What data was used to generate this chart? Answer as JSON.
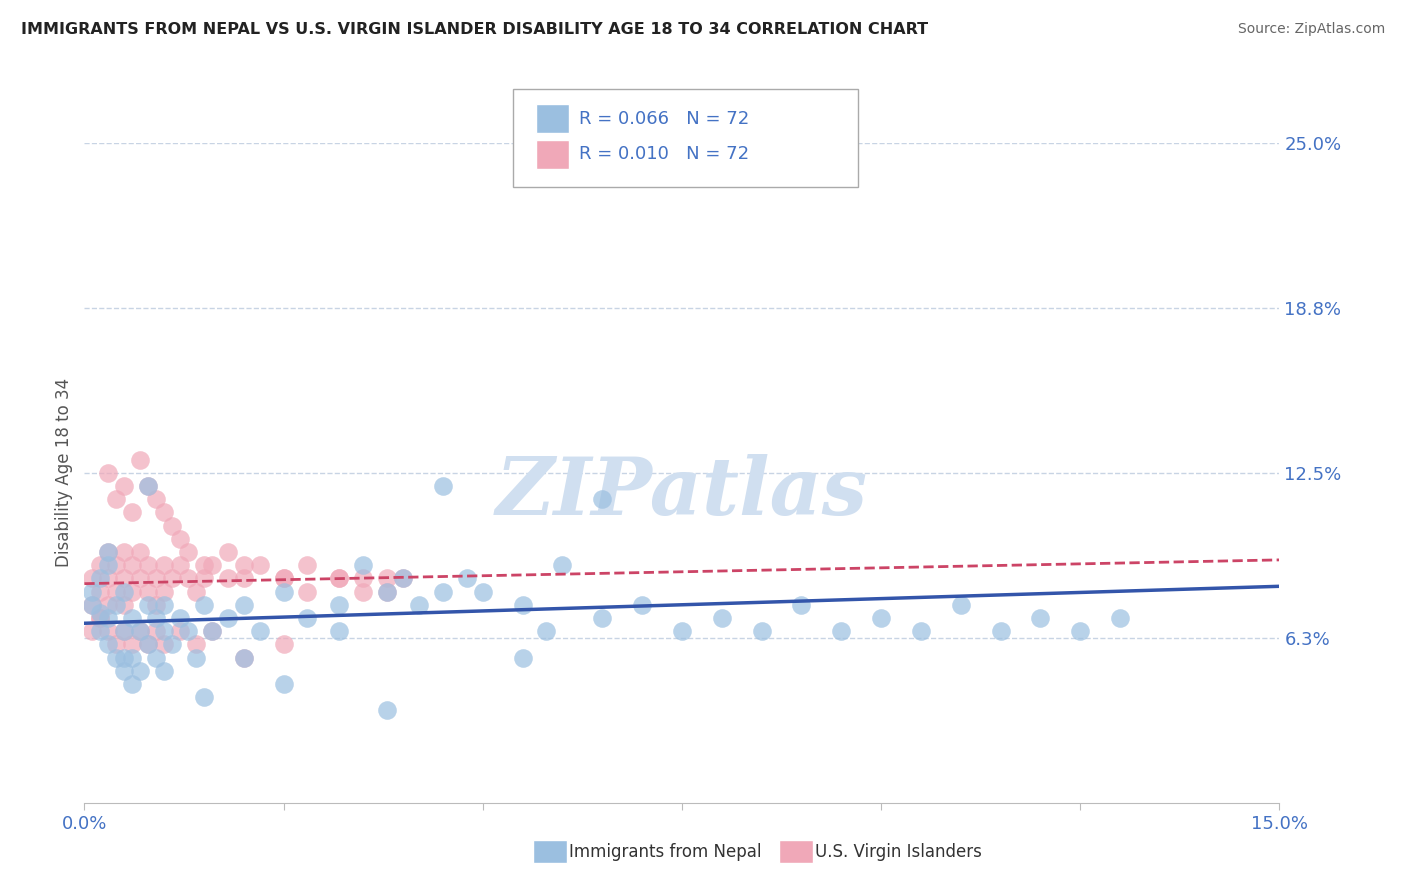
{
  "title": "IMMIGRANTS FROM NEPAL VS U.S. VIRGIN ISLANDER DISABILITY AGE 18 TO 34 CORRELATION CHART",
  "source": "Source: ZipAtlas.com",
  "ylabel": "Disability Age 18 to 34",
  "xlim": [
    0.0,
    0.15
  ],
  "ylim": [
    0.0,
    0.25
  ],
  "blue_color": "#9bbfe0",
  "pink_color": "#f0a8b8",
  "trend_blue": "#3355aa",
  "trend_pink": "#cc4466",
  "watermark": "ZIPatlas",
  "watermark_color": "#d0dff0",
  "axis_label_color": "#4472c4",
  "background_color": "#ffffff",
  "grid_color": "#c8d4e4",
  "legend_label1": "Immigrants from Nepal",
  "legend_label2": "U.S. Virgin Islanders",
  "nepal_x": [
    0.001,
    0.001,
    0.002,
    0.002,
    0.002,
    0.003,
    0.003,
    0.003,
    0.004,
    0.004,
    0.005,
    0.005,
    0.005,
    0.006,
    0.006,
    0.006,
    0.007,
    0.007,
    0.008,
    0.008,
    0.009,
    0.009,
    0.01,
    0.01,
    0.011,
    0.012,
    0.013,
    0.014,
    0.015,
    0.016,
    0.018,
    0.02,
    0.022,
    0.025,
    0.028,
    0.032,
    0.035,
    0.038,
    0.04,
    0.042,
    0.045,
    0.048,
    0.05,
    0.055,
    0.058,
    0.06,
    0.065,
    0.07,
    0.075,
    0.08,
    0.085,
    0.09,
    0.095,
    0.1,
    0.105,
    0.11,
    0.115,
    0.12,
    0.125,
    0.13,
    0.003,
    0.005,
    0.008,
    0.01,
    0.015,
    0.02,
    0.025,
    0.032,
    0.038,
    0.045,
    0.055,
    0.065
  ],
  "nepal_y": [
    0.08,
    0.075,
    0.072,
    0.085,
    0.065,
    0.09,
    0.07,
    0.06,
    0.075,
    0.055,
    0.08,
    0.065,
    0.05,
    0.07,
    0.055,
    0.045,
    0.065,
    0.05,
    0.075,
    0.06,
    0.07,
    0.055,
    0.065,
    0.05,
    0.06,
    0.07,
    0.065,
    0.055,
    0.075,
    0.065,
    0.07,
    0.075,
    0.065,
    0.08,
    0.07,
    0.075,
    0.09,
    0.08,
    0.085,
    0.075,
    0.08,
    0.085,
    0.08,
    0.075,
    0.065,
    0.09,
    0.07,
    0.075,
    0.065,
    0.07,
    0.065,
    0.075,
    0.065,
    0.07,
    0.065,
    0.075,
    0.065,
    0.07,
    0.065,
    0.07,
    0.095,
    0.055,
    0.12,
    0.075,
    0.04,
    0.055,
    0.045,
    0.065,
    0.035,
    0.12,
    0.055,
    0.115
  ],
  "virgin_x": [
    0.001,
    0.001,
    0.001,
    0.002,
    0.002,
    0.002,
    0.003,
    0.003,
    0.003,
    0.004,
    0.004,
    0.005,
    0.005,
    0.005,
    0.006,
    0.006,
    0.007,
    0.007,
    0.008,
    0.008,
    0.009,
    0.009,
    0.01,
    0.01,
    0.011,
    0.012,
    0.013,
    0.014,
    0.015,
    0.016,
    0.018,
    0.02,
    0.022,
    0.025,
    0.028,
    0.032,
    0.035,
    0.038,
    0.04,
    0.003,
    0.004,
    0.005,
    0.006,
    0.007,
    0.008,
    0.009,
    0.01,
    0.011,
    0.012,
    0.013,
    0.015,
    0.018,
    0.02,
    0.025,
    0.028,
    0.032,
    0.035,
    0.038,
    0.002,
    0.003,
    0.004,
    0.005,
    0.006,
    0.007,
    0.008,
    0.009,
    0.01,
    0.012,
    0.014,
    0.016,
    0.02,
    0.025
  ],
  "virgin_y": [
    0.085,
    0.075,
    0.065,
    0.09,
    0.08,
    0.07,
    0.095,
    0.085,
    0.075,
    0.09,
    0.08,
    0.095,
    0.085,
    0.075,
    0.09,
    0.08,
    0.095,
    0.085,
    0.09,
    0.08,
    0.085,
    0.075,
    0.09,
    0.08,
    0.085,
    0.09,
    0.085,
    0.08,
    0.085,
    0.09,
    0.085,
    0.085,
    0.09,
    0.085,
    0.08,
    0.085,
    0.08,
    0.085,
    0.085,
    0.125,
    0.115,
    0.12,
    0.11,
    0.13,
    0.12,
    0.115,
    0.11,
    0.105,
    0.1,
    0.095,
    0.09,
    0.095,
    0.09,
    0.085,
    0.09,
    0.085,
    0.085,
    0.08,
    0.07,
    0.065,
    0.06,
    0.065,
    0.06,
    0.065,
    0.06,
    0.065,
    0.06,
    0.065,
    0.06,
    0.065,
    0.055,
    0.06
  ],
  "nepal_trend_x": [
    0.0,
    0.15
  ],
  "nepal_trend_y": [
    0.068,
    0.082
  ],
  "virgin_trend_x": [
    0.0,
    0.15
  ],
  "virgin_trend_y": [
    0.083,
    0.092
  ]
}
